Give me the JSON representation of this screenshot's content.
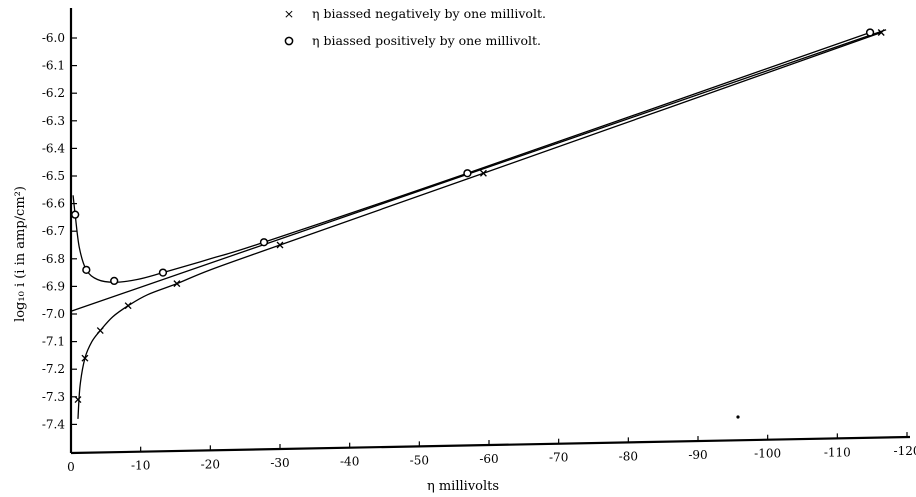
{
  "chart_data": {
    "type": "line",
    "title": "",
    "xlabel": "η   millivolts",
    "ylabel": "log₁₀ i  (i in amp/cm²)",
    "xlim": [
      0,
      -120
    ],
    "ylim": [
      -7.45,
      -5.95
    ],
    "x_ticks": [
      0,
      -10,
      -20,
      -30,
      -40,
      -50,
      -60,
      -70,
      -80,
      -90,
      -100,
      -110,
      -120
    ],
    "x_tick_labels": [
      "0",
      "-10",
      "-20",
      "-30",
      "-40",
      "-50",
      "-60",
      "-70",
      "-80",
      "-90",
      "-100",
      "-110",
      "-120"
    ],
    "y_ticks": [
      -6.0,
      -6.1,
      -6.2,
      -6.3,
      -6.4,
      -6.5,
      -6.6,
      -6.7,
      -6.8,
      -6.9,
      -7.0,
      -7.1,
      -7.2,
      -7.3,
      -7.4
    ],
    "y_tick_labels": [
      "-6.0",
      "-6.1",
      "-6.2",
      "-6.3",
      "-6.4",
      "-6.5",
      "-6.6",
      "-6.7",
      "-6.8",
      "-6.9",
      "-7.0",
      "-7.1",
      "-7.2",
      "-7.3",
      "-7.4"
    ],
    "grid": false,
    "legend_position": "top-center",
    "series": [
      {
        "name": "η biassed negatively by one millivolt.",
        "marker": "x",
        "points": [
          {
            "x": -1.0,
            "y": -7.31
          },
          {
            "x": -2.0,
            "y": -7.16
          },
          {
            "x": -4.2,
            "y": -7.06
          },
          {
            "x": -8.2,
            "y": -6.97
          },
          {
            "x": -15.2,
            "y": -6.89
          },
          {
            "x": -30.0,
            "y": -6.75
          },
          {
            "x": -59.2,
            "y": -6.49
          },
          {
            "x": -116.3,
            "y": -5.98
          }
        ],
        "curve": [
          {
            "x": -1.0,
            "y": -7.38
          },
          {
            "x": -1.3,
            "y": -7.26
          },
          {
            "x": -2.0,
            "y": -7.16
          },
          {
            "x": -3.0,
            "y": -7.1
          },
          {
            "x": -4.2,
            "y": -7.06
          },
          {
            "x": -6.0,
            "y": -7.01
          },
          {
            "x": -8.2,
            "y": -6.97
          },
          {
            "x": -11.0,
            "y": -6.93
          },
          {
            "x": -15.2,
            "y": -6.89
          },
          {
            "x": -20.0,
            "y": -6.84
          },
          {
            "x": -30.0,
            "y": -6.75
          },
          {
            "x": -59.2,
            "y": -6.49
          },
          {
            "x": -116.3,
            "y": -5.98
          }
        ]
      },
      {
        "name": "η biassed positively by one millivolt.",
        "marker": "o",
        "points": [
          {
            "x": -0.6,
            "y": -6.64
          },
          {
            "x": -2.2,
            "y": -6.84
          },
          {
            "x": -6.2,
            "y": -6.88
          },
          {
            "x": -13.2,
            "y": -6.85
          },
          {
            "x": -27.7,
            "y": -6.74
          },
          {
            "x": -56.9,
            "y": -6.49
          },
          {
            "x": -114.7,
            "y": -5.98
          }
        ],
        "curve": [
          {
            "x": -0.3,
            "y": -6.57
          },
          {
            "x": -0.6,
            "y": -6.64
          },
          {
            "x": -1.2,
            "y": -6.76
          },
          {
            "x": -2.2,
            "y": -6.84
          },
          {
            "x": -3.8,
            "y": -6.875
          },
          {
            "x": -6.2,
            "y": -6.885
          },
          {
            "x": -9.5,
            "y": -6.875
          },
          {
            "x": -13.2,
            "y": -6.85
          },
          {
            "x": -20.0,
            "y": -6.8
          },
          {
            "x": -27.7,
            "y": -6.74
          },
          {
            "x": -56.9,
            "y": -6.49
          },
          {
            "x": -114.7,
            "y": -5.98
          }
        ]
      }
    ],
    "reference_line": {
      "points": [
        {
          "x": 0,
          "y": -6.99
        },
        {
          "x": -117,
          "y": -5.97
        }
      ]
    }
  }
}
